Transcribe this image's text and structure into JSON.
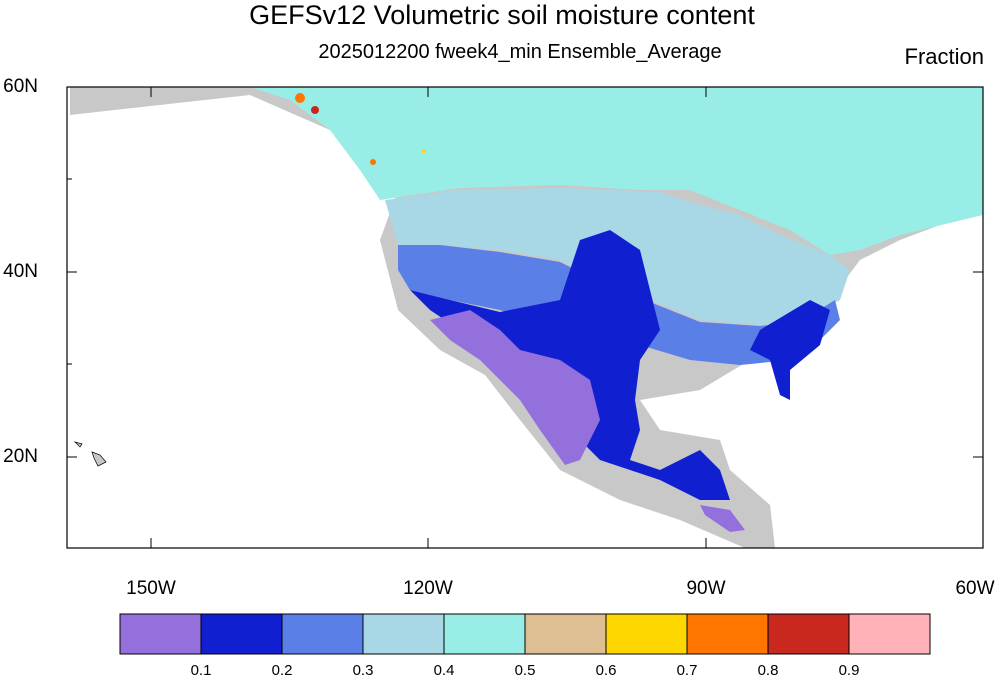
{
  "title": "GEFSv12 Volumetric soil moisture content",
  "subtitle": "2025012200 fweek4_min Ensemble_Average",
  "units": "Fraction",
  "lat_ticks": [
    "60N",
    "40N",
    "20N"
  ],
  "lon_ticks": [
    "150W",
    "120W",
    "90W",
    "60W"
  ],
  "colorbar": {
    "colors": [
      "#9370db",
      "#1020d0",
      "#5a80e8",
      "#a8d8e6",
      "#98eee6",
      "#ddbf93",
      "#ffd700",
      "#ff7500",
      "#c8281e",
      "#ffb3b8"
    ],
    "labels": [
      "0.1",
      "0.2",
      "0.3",
      "0.4",
      "0.5",
      "0.6",
      "0.7",
      "0.8",
      "0.9"
    ]
  },
  "colors": {
    "land_missing": "#c8c8c8",
    "coastline": "#000000"
  }
}
